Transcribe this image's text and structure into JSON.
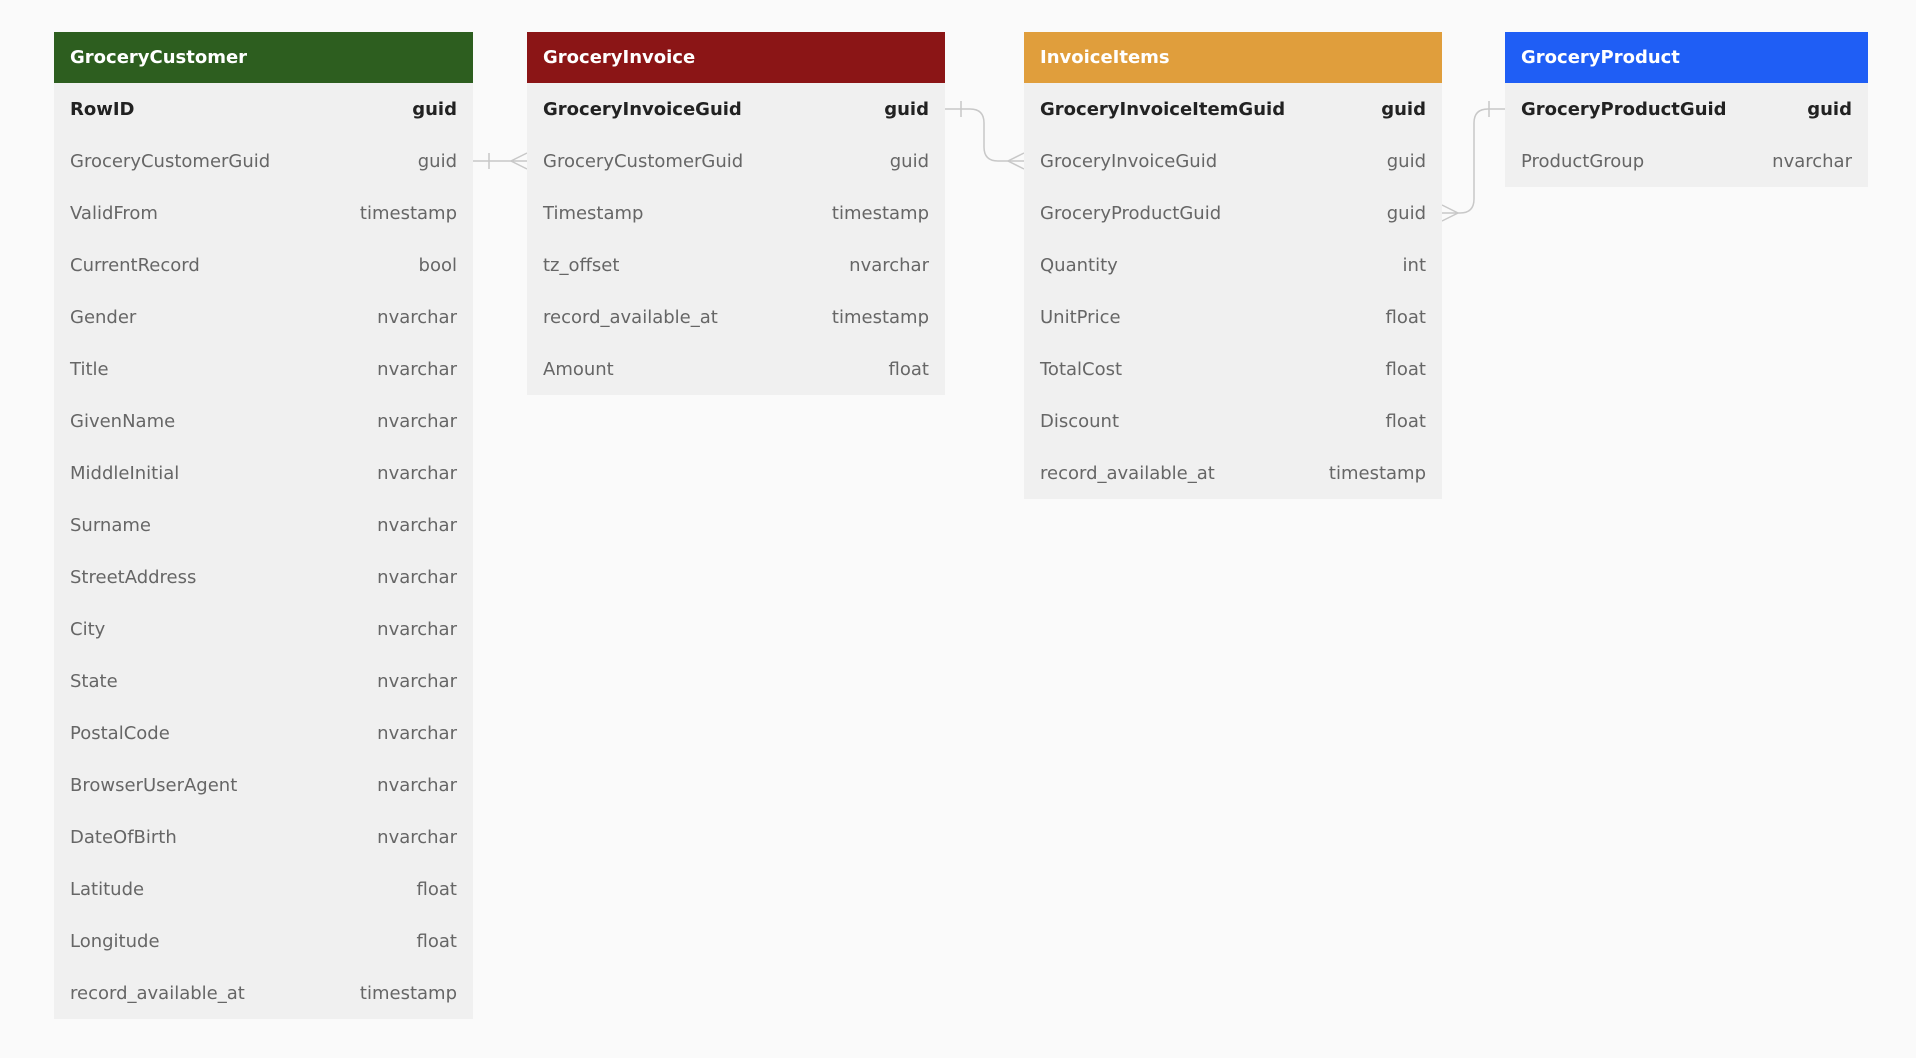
{
  "tables": [
    {
      "name": "GroceryCustomer",
      "color": "#2d5e1f",
      "columns": [
        {
          "name": "RowID",
          "type": "guid",
          "pk": true
        },
        {
          "name": "GroceryCustomerGuid",
          "type": "guid"
        },
        {
          "name": "ValidFrom",
          "type": "timestamp"
        },
        {
          "name": "CurrentRecord",
          "type": "bool"
        },
        {
          "name": "Gender",
          "type": "nvarchar"
        },
        {
          "name": "Title",
          "type": "nvarchar"
        },
        {
          "name": "GivenName",
          "type": "nvarchar"
        },
        {
          "name": "MiddleInitial",
          "type": "nvarchar"
        },
        {
          "name": "Surname",
          "type": "nvarchar"
        },
        {
          "name": "StreetAddress",
          "type": "nvarchar"
        },
        {
          "name": "City",
          "type": "nvarchar"
        },
        {
          "name": "State",
          "type": "nvarchar"
        },
        {
          "name": "PostalCode",
          "type": "nvarchar"
        },
        {
          "name": "BrowserUserAgent",
          "type": "nvarchar"
        },
        {
          "name": "DateOfBirth",
          "type": "nvarchar"
        },
        {
          "name": "Latitude",
          "type": "float"
        },
        {
          "name": "Longitude",
          "type": "float"
        },
        {
          "name": "record_available_at",
          "type": "timestamp"
        }
      ]
    },
    {
      "name": "GroceryInvoice",
      "color": "#8b1516",
      "columns": [
        {
          "name": "GroceryInvoiceGuid",
          "type": "guid",
          "pk": true
        },
        {
          "name": "GroceryCustomerGuid",
          "type": "guid"
        },
        {
          "name": "Timestamp",
          "type": "timestamp"
        },
        {
          "name": "tz_offset",
          "type": "nvarchar"
        },
        {
          "name": "record_available_at",
          "type": "timestamp"
        },
        {
          "name": "Amount",
          "type": "float"
        }
      ]
    },
    {
      "name": "InvoiceItems",
      "color": "#e09e3c",
      "columns": [
        {
          "name": "GroceryInvoiceItemGuid",
          "type": "guid",
          "pk": true
        },
        {
          "name": "GroceryInvoiceGuid",
          "type": "guid"
        },
        {
          "name": "GroceryProductGuid",
          "type": "guid"
        },
        {
          "name": "Quantity",
          "type": "int"
        },
        {
          "name": "UnitPrice",
          "type": "float"
        },
        {
          "name": "TotalCost",
          "type": "float"
        },
        {
          "name": "Discount",
          "type": "float"
        },
        {
          "name": "record_available_at",
          "type": "timestamp"
        }
      ]
    },
    {
      "name": "GroceryProduct",
      "color": "#1f5ef5",
      "columns": [
        {
          "name": "GroceryProductGuid",
          "type": "guid",
          "pk": true
        },
        {
          "name": "ProductGroup",
          "type": "nvarchar"
        }
      ]
    }
  ],
  "relationships": [
    {
      "from": "GroceryCustomer.GroceryCustomerGuid",
      "to": "GroceryInvoice.GroceryCustomerGuid",
      "cardinality": "one-to-many"
    },
    {
      "from": "GroceryInvoice.GroceryInvoiceGuid",
      "to": "InvoiceItems.GroceryInvoiceGuid",
      "cardinality": "one-to-many"
    },
    {
      "from": "GroceryProduct.GroceryProductGuid",
      "to": "InvoiceItems.GroceryProductGuid",
      "cardinality": "one-to-many"
    }
  ]
}
